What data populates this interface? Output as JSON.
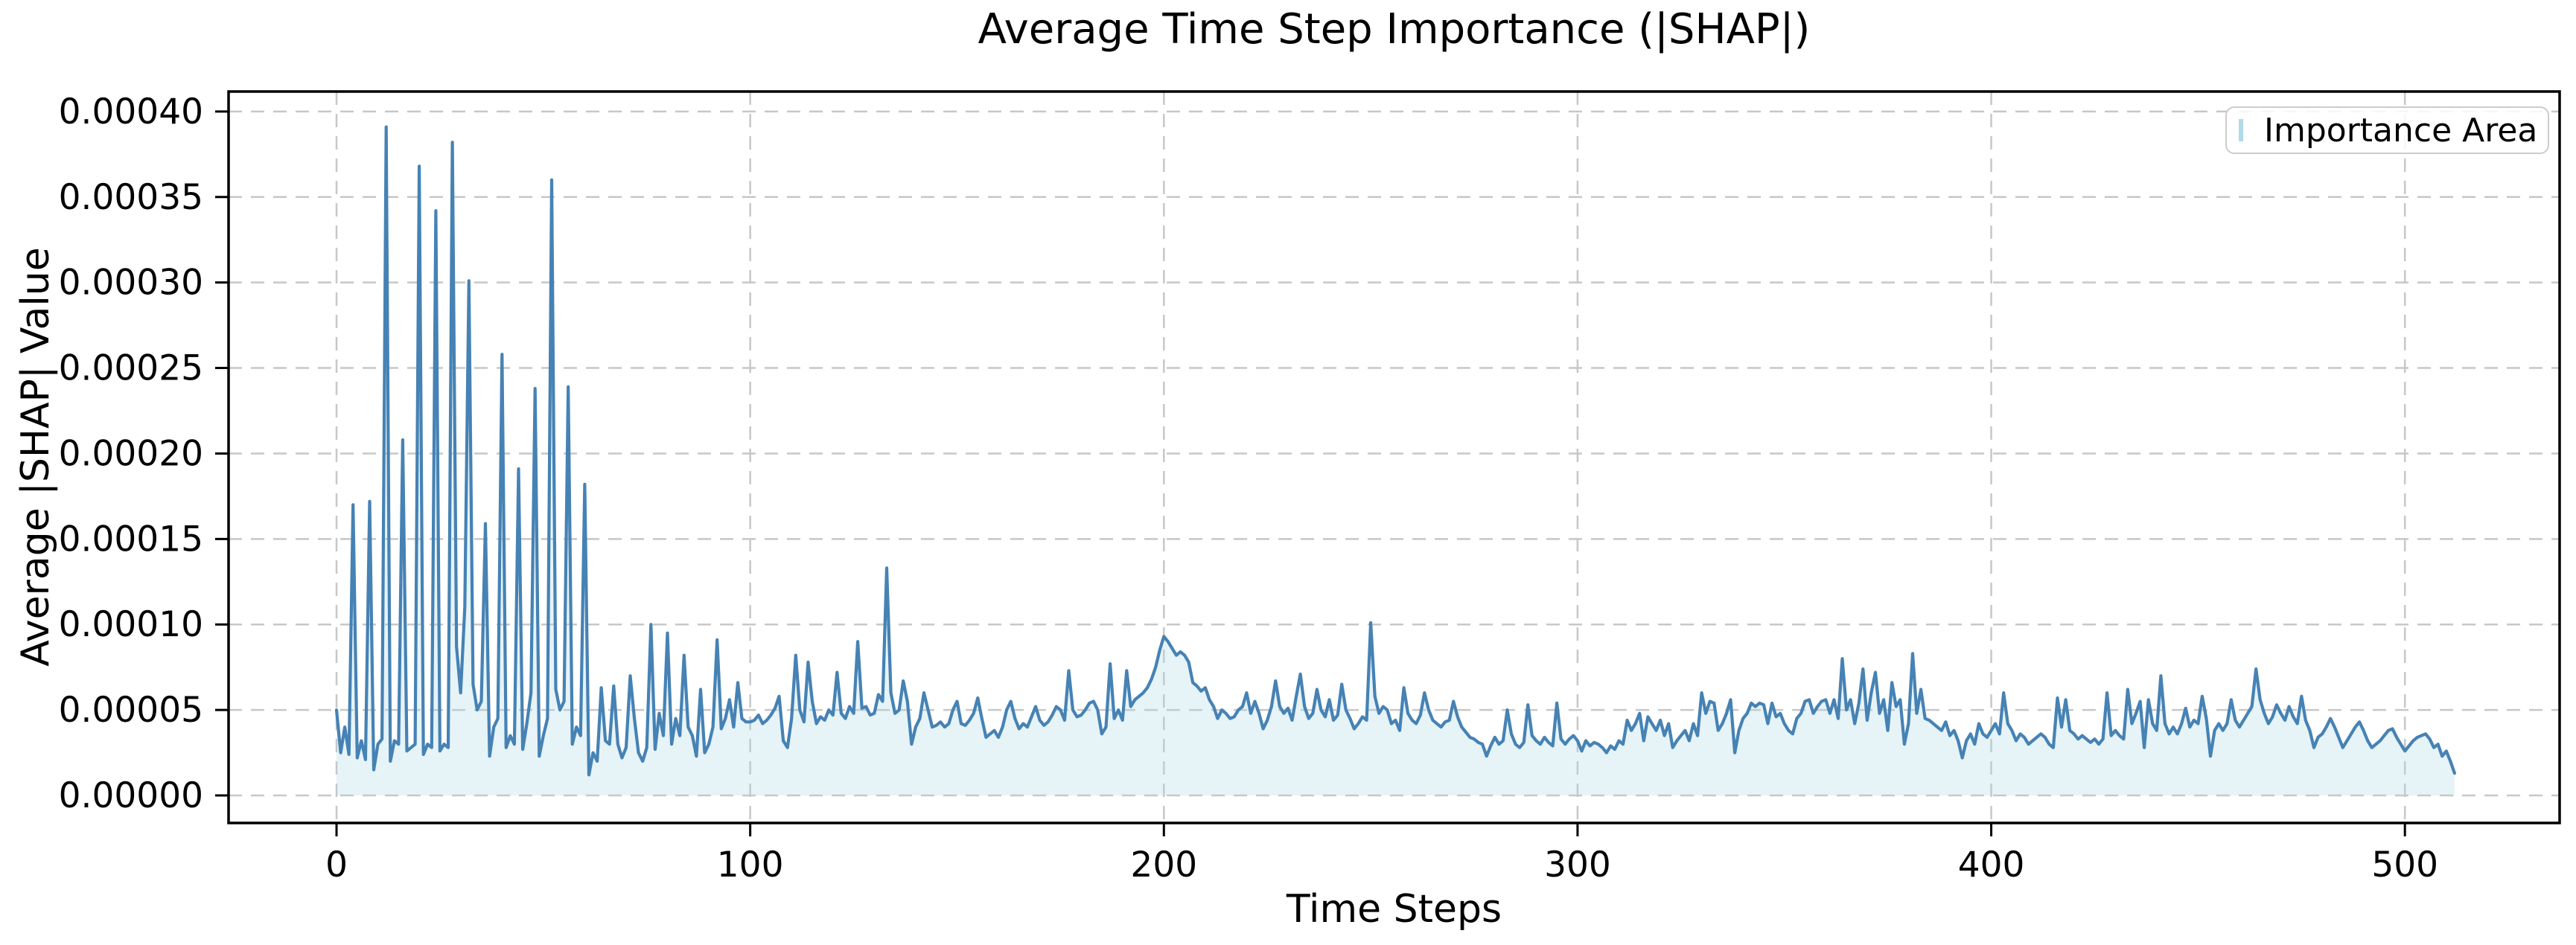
{
  "chart_data": {
    "type": "area",
    "title": "Average Time Step Importance (|SHAP|)",
    "xlabel": "Time Steps",
    "ylabel": "Average |SHAP| Value",
    "series_name": "Importance Area",
    "grid": true,
    "grid_style": "dashed",
    "legend_position": "upper right",
    "xlim": [
      -26.1,
      537.4
    ],
    "ylim": [
      -1.61e-05,
      0.0004117
    ],
    "xticks": [
      0,
      100,
      200,
      300,
      400,
      500
    ],
    "xtick_labels": [
      "0",
      "100",
      "200",
      "300",
      "400",
      "500"
    ],
    "yticks": [
      0,
      5e-05,
      0.0001,
      0.00015,
      0.0002,
      0.00025,
      0.0003,
      0.00035,
      0.0004
    ],
    "ytick_labels": [
      "0.00000",
      "0.00005",
      "0.00010",
      "0.00015",
      "0.00020",
      "0.00025",
      "0.00030",
      "0.00035",
      "0.00040"
    ],
    "x_start": 0,
    "x_step": 1,
    "n_points": 513,
    "y": [
      5e-05,
      2.5e-05,
      4e-05,
      2.4e-05,
      0.00017,
      2.2e-05,
      3.2e-05,
      2.1e-05,
      0.000172,
      1.5e-05,
      3e-05,
      3.3e-05,
      0.000391,
      2e-05,
      3.2e-05,
      3e-05,
      0.000208,
      2.6e-05,
      2.8e-05,
      3e-05,
      0.000368,
      2.4e-05,
      3e-05,
      2.8e-05,
      0.000342,
      2.6e-05,
      3e-05,
      2.8e-05,
      0.000382,
      8.7e-05,
      6e-05,
      0.00011,
      0.000301,
      6.5e-05,
      5e-05,
      5.5e-05,
      0.000159,
      2.3e-05,
      4e-05,
      4.5e-05,
      0.000258,
      2.8e-05,
      3.5e-05,
      3e-05,
      0.000191,
      2.7e-05,
      4.2e-05,
      6e-05,
      0.000238,
      2.3e-05,
      3.5e-05,
      4.5e-05,
      0.00036,
      6.2e-05,
      5e-05,
      5.5e-05,
      0.000239,
      3e-05,
      4e-05,
      3.5e-05,
      0.000182,
      1.2e-05,
      2.5e-05,
      2e-05,
      6.3e-05,
      3.2e-05,
      3e-05,
      6.4e-05,
      3e-05,
      2.2e-05,
      2.8e-05,
      7e-05,
      4.5e-05,
      2.5e-05,
      2e-05,
      2.8e-05,
      0.0001,
      2.7e-05,
      4.8e-05,
      3.5e-05,
      9.5e-05,
      3e-05,
      4.5e-05,
      3.5e-05,
      8.2e-05,
      4e-05,
      3.5e-05,
      2.3e-05,
      6.2e-05,
      2.5e-05,
      3e-05,
      4e-05,
      9.1e-05,
      3.9e-05,
      4.5e-05,
      5.6e-05,
      4e-05,
      6.6e-05,
      4.5e-05,
      4.3e-05,
      4.3e-05,
      4.4e-05,
      4.7e-05,
      4.2e-05,
      4.4e-05,
      4.7e-05,
      5.1e-05,
      5.8e-05,
      3.2e-05,
      2.8e-05,
      4.5e-05,
      8.2e-05,
      5e-05,
      4.3e-05,
      7.8e-05,
      5.5e-05,
      4.2e-05,
      4.6e-05,
      4.4e-05,
      5e-05,
      4.7e-05,
      7.2e-05,
      4.8e-05,
      4.5e-05,
      5.2e-05,
      4.8e-05,
      9e-05,
      5.1e-05,
      5.2e-05,
      4.7e-05,
      4.8e-05,
      5.9e-05,
      5.5e-05,
      0.000133,
      6e-05,
      4.8e-05,
      5e-05,
      6.7e-05,
      5.5e-05,
      3e-05,
      4e-05,
      4.5e-05,
      6e-05,
      5e-05,
      4e-05,
      4.1e-05,
      4.3e-05,
      4e-05,
      4.2e-05,
      5e-05,
      5.5e-05,
      4.2e-05,
      4.1e-05,
      4.4e-05,
      4.8e-05,
      5.7e-05,
      4.5e-05,
      3.4e-05,
      3.6e-05,
      3.8e-05,
      3.4e-05,
      4e-05,
      5e-05,
      5.5e-05,
      4.5e-05,
      3.9e-05,
      4.2e-05,
      4e-05,
      4.6e-05,
      5.2e-05,
      4.4e-05,
      4.1e-05,
      4.3e-05,
      4.7e-05,
      5.2e-05,
      5e-05,
      4.4e-05,
      7.3e-05,
      5e-05,
      4.6e-05,
      4.7e-05,
      5e-05,
      5.4e-05,
      5.5e-05,
      5e-05,
      3.6e-05,
      4e-05,
      7.7e-05,
      4.5e-05,
      5e-05,
      4.4e-05,
      7.3e-05,
      5.2e-05,
      5.6e-05,
      5.8e-05,
      6e-05,
      6.3e-05,
      6.8e-05,
      7.5e-05,
      8.5e-05,
      9.3e-05,
      9e-05,
      8.6e-05,
      8.2e-05,
      8.4e-05,
      8.2e-05,
      7.8e-05,
      6.6e-05,
      6.4e-05,
      6.1e-05,
      6.3e-05,
      5.6e-05,
      5.2e-05,
      4.5e-05,
      5e-05,
      4.8e-05,
      4.5e-05,
      4.6e-05,
      5e-05,
      5.2e-05,
      6e-05,
      4.8e-05,
      5.5e-05,
      4.8e-05,
      3.9e-05,
      4.4e-05,
      5.2e-05,
      6.7e-05,
      5.2e-05,
      4.8e-05,
      5.1e-05,
      4.4e-05,
      5.8e-05,
      7.1e-05,
      5.2e-05,
      4.5e-05,
      4.8e-05,
      6.2e-05,
      5e-05,
      4.6e-05,
      5.6e-05,
      4.4e-05,
      4.7e-05,
      6.5e-05,
      5e-05,
      4.5e-05,
      3.9e-05,
      4.2e-05,
      4.6e-05,
      4.4e-05,
      0.000101,
      5.8e-05,
      4.8e-05,
      5.2e-05,
      5e-05,
      4.2e-05,
      4.4e-05,
      3.8e-05,
      6.3e-05,
      4.8e-05,
      4.4e-05,
      4.2e-05,
      4.7e-05,
      6e-05,
      5e-05,
      4.4e-05,
      4.2e-05,
      4e-05,
      4.3e-05,
      4.4e-05,
      5.5e-05,
      4.6e-05,
      4e-05,
      3.7e-05,
      3.4e-05,
      3.3e-05,
      3.1e-05,
      3e-05,
      2.3e-05,
      2.9e-05,
      3.4e-05,
      3e-05,
      3.2e-05,
      5e-05,
      3.6e-05,
      3e-05,
      2.8e-05,
      3.1e-05,
      5.3e-05,
      3.5e-05,
      3.2e-05,
      3e-05,
      3.4e-05,
      3.1e-05,
      2.9e-05,
      5.4e-05,
      3.3e-05,
      3e-05,
      3.3e-05,
      3.5e-05,
      3.2e-05,
      2.6e-05,
      3.2e-05,
      2.9e-05,
      3.1e-05,
      3e-05,
      2.8e-05,
      2.5e-05,
      2.9e-05,
      2.7e-05,
      3.2e-05,
      3e-05,
      4.4e-05,
      3.8e-05,
      4.2e-05,
      4.8e-05,
      3.2e-05,
      4.6e-05,
      4.2e-05,
      3.8e-05,
      4.4e-05,
      3.5e-05,
      4.2e-05,
      2.8e-05,
      3.2e-05,
      3.5e-05,
      3.8e-05,
      3.2e-05,
      4.2e-05,
      3.5e-05,
      6e-05,
      4.8e-05,
      5.5e-05,
      5.4e-05,
      3.8e-05,
      4.2e-05,
      4.8e-05,
      5.6e-05,
      2.5e-05,
      3.8e-05,
      4.5e-05,
      4.8e-05,
      5.4e-05,
      5.2e-05,
      5.4e-05,
      5.3e-05,
      4.2e-05,
      5.4e-05,
      4.6e-05,
      4.8e-05,
      4.2e-05,
      3.8e-05,
      3.6e-05,
      4.5e-05,
      4.8e-05,
      5.5e-05,
      5.6e-05,
      4.8e-05,
      5.2e-05,
      5.5e-05,
      5.6e-05,
      4.8e-05,
      5.6e-05,
      4.5e-05,
      8e-05,
      5e-05,
      5.6e-05,
      4.2e-05,
      5.4e-05,
      7.4e-05,
      4.4e-05,
      6e-05,
      7.2e-05,
      4.8e-05,
      5.6e-05,
      3.8e-05,
      6.6e-05,
      5.2e-05,
      5.6e-05,
      3e-05,
      4.2e-05,
      8.3e-05,
      4.8e-05,
      6.2e-05,
      4.5e-05,
      4.4e-05,
      4.2e-05,
      4e-05,
      3.8e-05,
      4.3e-05,
      3.5e-05,
      3.8e-05,
      3.2e-05,
      2.2e-05,
      3.2e-05,
      3.6e-05,
      3e-05,
      4.2e-05,
      3.6e-05,
      3.4e-05,
      3.8e-05,
      4.2e-05,
      3.6e-05,
      6e-05,
      4.2e-05,
      3.8e-05,
      3.2e-05,
      3.6e-05,
      3.4e-05,
      3e-05,
      3.2e-05,
      3.4e-05,
      3.6e-05,
      3.4e-05,
      3e-05,
      2.8e-05,
      5.7e-05,
      4e-05,
      5.6e-05,
      3.8e-05,
      3.6e-05,
      3.3e-05,
      3.5e-05,
      3.3e-05,
      3.1e-05,
      3.3e-05,
      3e-05,
      3.3e-05,
      6e-05,
      3.5e-05,
      3.8e-05,
      3.5e-05,
      3.3e-05,
      6.2e-05,
      4.2e-05,
      4.8e-05,
      5.5e-05,
      2.8e-05,
      5.6e-05,
      4.2e-05,
      3.8e-05,
      7e-05,
      4.2e-05,
      3.6e-05,
      4e-05,
      3.6e-05,
      4.2e-05,
      5.1e-05,
      4e-05,
      4.4e-05,
      4.2e-05,
      5.8e-05,
      4.5e-05,
      2.3e-05,
      3.8e-05,
      4.2e-05,
      3.8e-05,
      4.2e-05,
      5.6e-05,
      4.4e-05,
      4e-05,
      4.4e-05,
      4.8e-05,
      5.2e-05,
      7.4e-05,
      5.6e-05,
      4.8e-05,
      4.2e-05,
      4.6e-05,
      5.3e-05,
      4.8e-05,
      4.4e-05,
      5.2e-05,
      4.6e-05,
      4.2e-05,
      5.8e-05,
      4.4e-05,
      3.8e-05,
      2.8e-05,
      3.4e-05,
      3.6e-05,
      4e-05,
      4.5e-05,
      4e-05,
      3.4e-05,
      2.8e-05,
      3.2e-05,
      3.6e-05,
      4e-05,
      4.3e-05,
      3.8e-05,
      3.2e-05,
      2.8e-05,
      3e-05,
      3.2e-05,
      3.5e-05,
      3.8e-05,
      3.9e-05,
      3.4e-05,
      3e-05,
      2.6e-05,
      2.9e-05,
      3.2e-05,
      3.4e-05,
      3.5e-05,
      3.6e-05,
      3.3e-05,
      2.8e-05,
      3e-05,
      2.3e-05,
      2.6e-05,
      2e-05,
      1.3e-05
    ],
    "colors": {
      "line": "#4682b4",
      "fill": "#add8e6",
      "fill_opacity": 0.3,
      "grid": "#c7c7c7",
      "spine": "#000000",
      "text": "#000000",
      "background": "#ffffff"
    }
  }
}
